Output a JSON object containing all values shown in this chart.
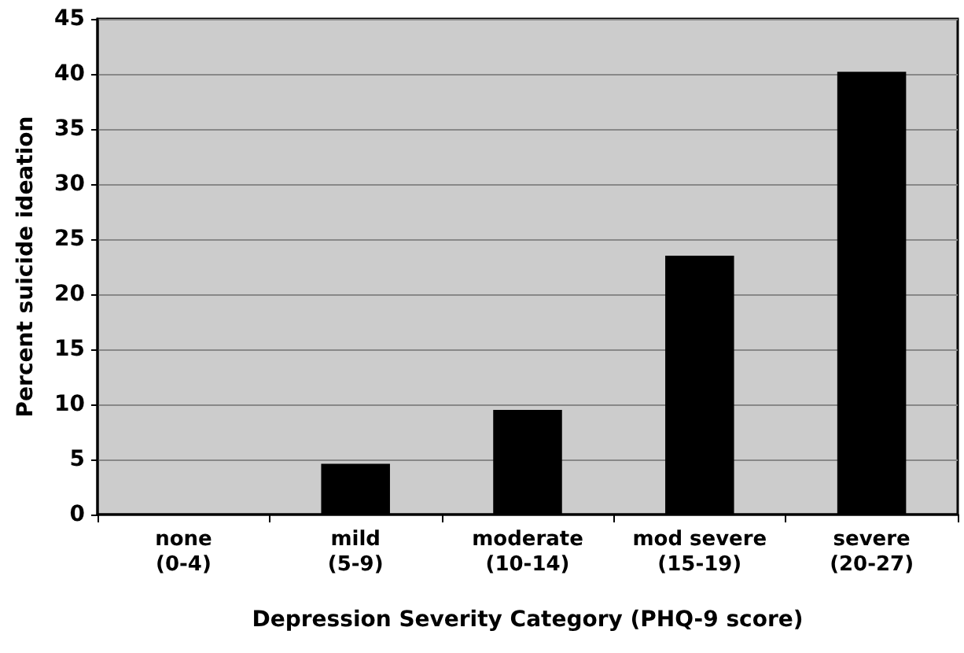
{
  "chart_data": {
    "type": "bar",
    "xlabel": "Depression Severity Category (PHQ-9 score)",
    "ylabel": "Percent suicide ideation",
    "categories": [
      "none\n(0-4)",
      "mild\n(5-9)",
      "moderate\n(10-14)",
      "mod severe\n(15-19)",
      "severe\n(20-27)"
    ],
    "values": [
      0,
      4.6,
      9.5,
      23.5,
      40.2
    ],
    "color": "#000000",
    "ylim": [
      0,
      45
    ],
    "yticks": [
      0,
      5,
      10,
      15,
      20,
      25,
      30,
      35,
      40,
      45
    ],
    "grid": "y"
  }
}
